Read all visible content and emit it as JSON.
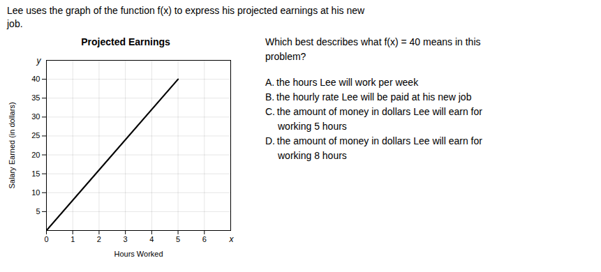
{
  "chart_data": {
    "type": "line",
    "title": "Projected Earnings",
    "xlabel": "Hours Worked",
    "ylabel": "Salary Earned (in dollars)",
    "x": [
      0,
      5
    ],
    "values": [
      0,
      40
    ],
    "color": "#000000",
    "xlim": [
      0,
      7
    ],
    "ylim": [
      0,
      45
    ],
    "xticks": [
      0,
      1,
      2,
      3,
      4,
      5,
      6
    ],
    "yticks": [
      5,
      10,
      15,
      20,
      25,
      30,
      35,
      40
    ],
    "grid": true,
    "annotations": [
      "Lee uses the graph of the function f(x) to express his projected earnings at his new",
      "job.",
      "Which best describes what f(x) = 40 means in this",
      "problem?",
      "A. the hours Lee will work per week",
      "B. the hourly rate Lee will be paid at his new job",
      "C. the amount of money in dollars Lee will earn for",
      "working 5 hours",
      "D. the amount of money in dollars Lee will earn for",
      "working 8 hours",
      "x",
      "y"
    ]
  }
}
